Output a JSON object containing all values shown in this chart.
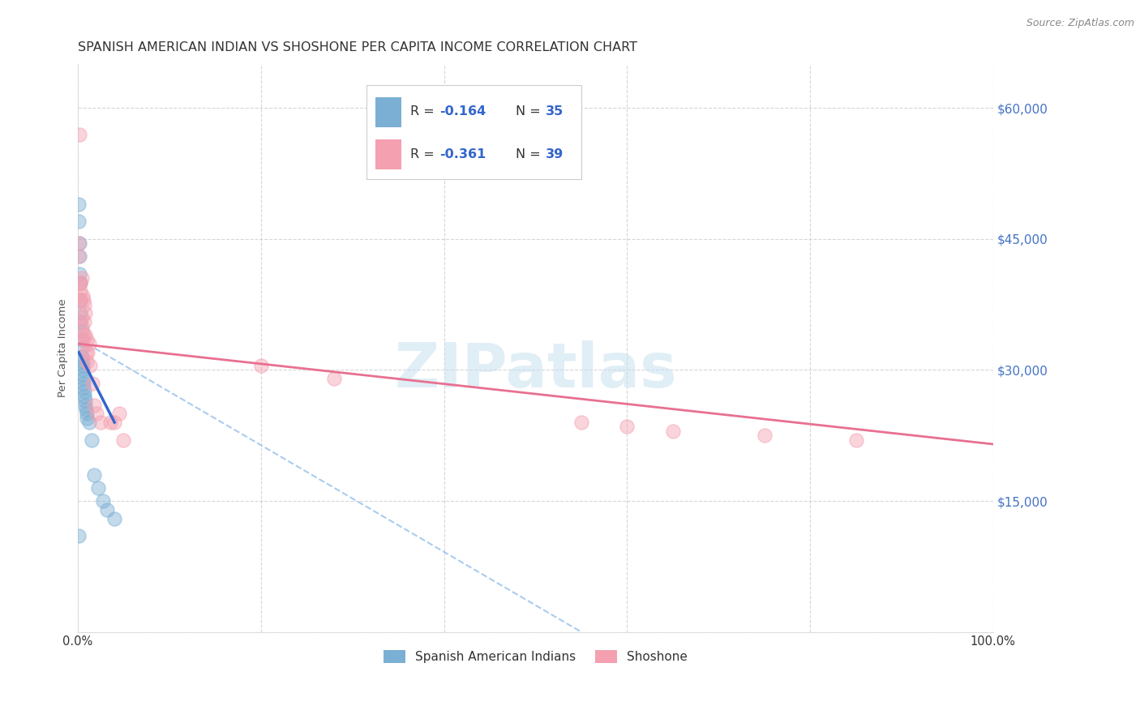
{
  "title": "SPANISH AMERICAN INDIAN VS SHOSHONE PER CAPITA INCOME CORRELATION CHART",
  "source": "Source: ZipAtlas.com",
  "ylabel": "Per Capita Income",
  "xlim": [
    0.0,
    1.0
  ],
  "ylim": [
    0,
    65000
  ],
  "yticks": [
    0,
    15000,
    30000,
    45000,
    60000
  ],
  "ytick_labels": [
    "",
    "$15,000",
    "$30,000",
    "$45,000",
    "$60,000"
  ],
  "xticks": [
    0.0,
    0.2,
    0.4,
    0.6,
    0.8,
    1.0
  ],
  "xtick_labels": [
    "0.0%",
    "",
    "",
    "",
    "",
    "100.0%"
  ],
  "blue_color": "#7BAFD4",
  "pink_color": "#F4A0B0",
  "blue_line_color": "#3366CC",
  "pink_line_color": "#E87090",
  "gray_dash_color": "#AACCEE",
  "watermark_text": "ZIPatlas",
  "legend_label_blue": "Spanish American Indians",
  "legend_label_pink": "Shoshone",
  "blue_x": [
    0.001,
    0.001,
    0.002,
    0.002,
    0.002,
    0.003,
    0.003,
    0.003,
    0.003,
    0.004,
    0.004,
    0.004,
    0.004,
    0.005,
    0.005,
    0.005,
    0.005,
    0.006,
    0.006,
    0.006,
    0.007,
    0.007,
    0.008,
    0.008,
    0.009,
    0.01,
    0.01,
    0.012,
    0.015,
    0.018,
    0.022,
    0.027,
    0.032,
    0.04,
    0.001
  ],
  "blue_y": [
    49000,
    47000,
    44500,
    43000,
    41000,
    40000,
    38000,
    36500,
    35500,
    34500,
    33500,
    32500,
    31500,
    31000,
    30500,
    30000,
    29500,
    29000,
    28500,
    28000,
    27500,
    27000,
    26500,
    26000,
    25500,
    25000,
    24500,
    24000,
    22000,
    18000,
    16500,
    15000,
    14000,
    13000,
    11000
  ],
  "pink_x": [
    0.001,
    0.001,
    0.002,
    0.002,
    0.003,
    0.003,
    0.003,
    0.004,
    0.004,
    0.004,
    0.005,
    0.005,
    0.006,
    0.006,
    0.007,
    0.007,
    0.008,
    0.008,
    0.009,
    0.01,
    0.01,
    0.011,
    0.012,
    0.013,
    0.016,
    0.018,
    0.02,
    0.025,
    0.035,
    0.04,
    0.045,
    0.05,
    0.28,
    0.55,
    0.6,
    0.65,
    0.75,
    0.85,
    0.2
  ],
  "pink_y": [
    44500,
    43000,
    57000,
    40000,
    40000,
    39000,
    38000,
    36000,
    40500,
    35000,
    38500,
    33500,
    38000,
    34000,
    37500,
    35500,
    36500,
    34000,
    32000,
    33500,
    31000,
    32000,
    33000,
    30500,
    28500,
    26000,
    25000,
    24000,
    24000,
    24000,
    25000,
    22000,
    29000,
    24000,
    23500,
    23000,
    22500,
    22000,
    30500
  ],
  "background_color": "#FFFFFF",
  "title_fontsize": 11.5,
  "tick_color_right": "#4472C4",
  "marker_size": 150,
  "marker_alpha": 0.45
}
